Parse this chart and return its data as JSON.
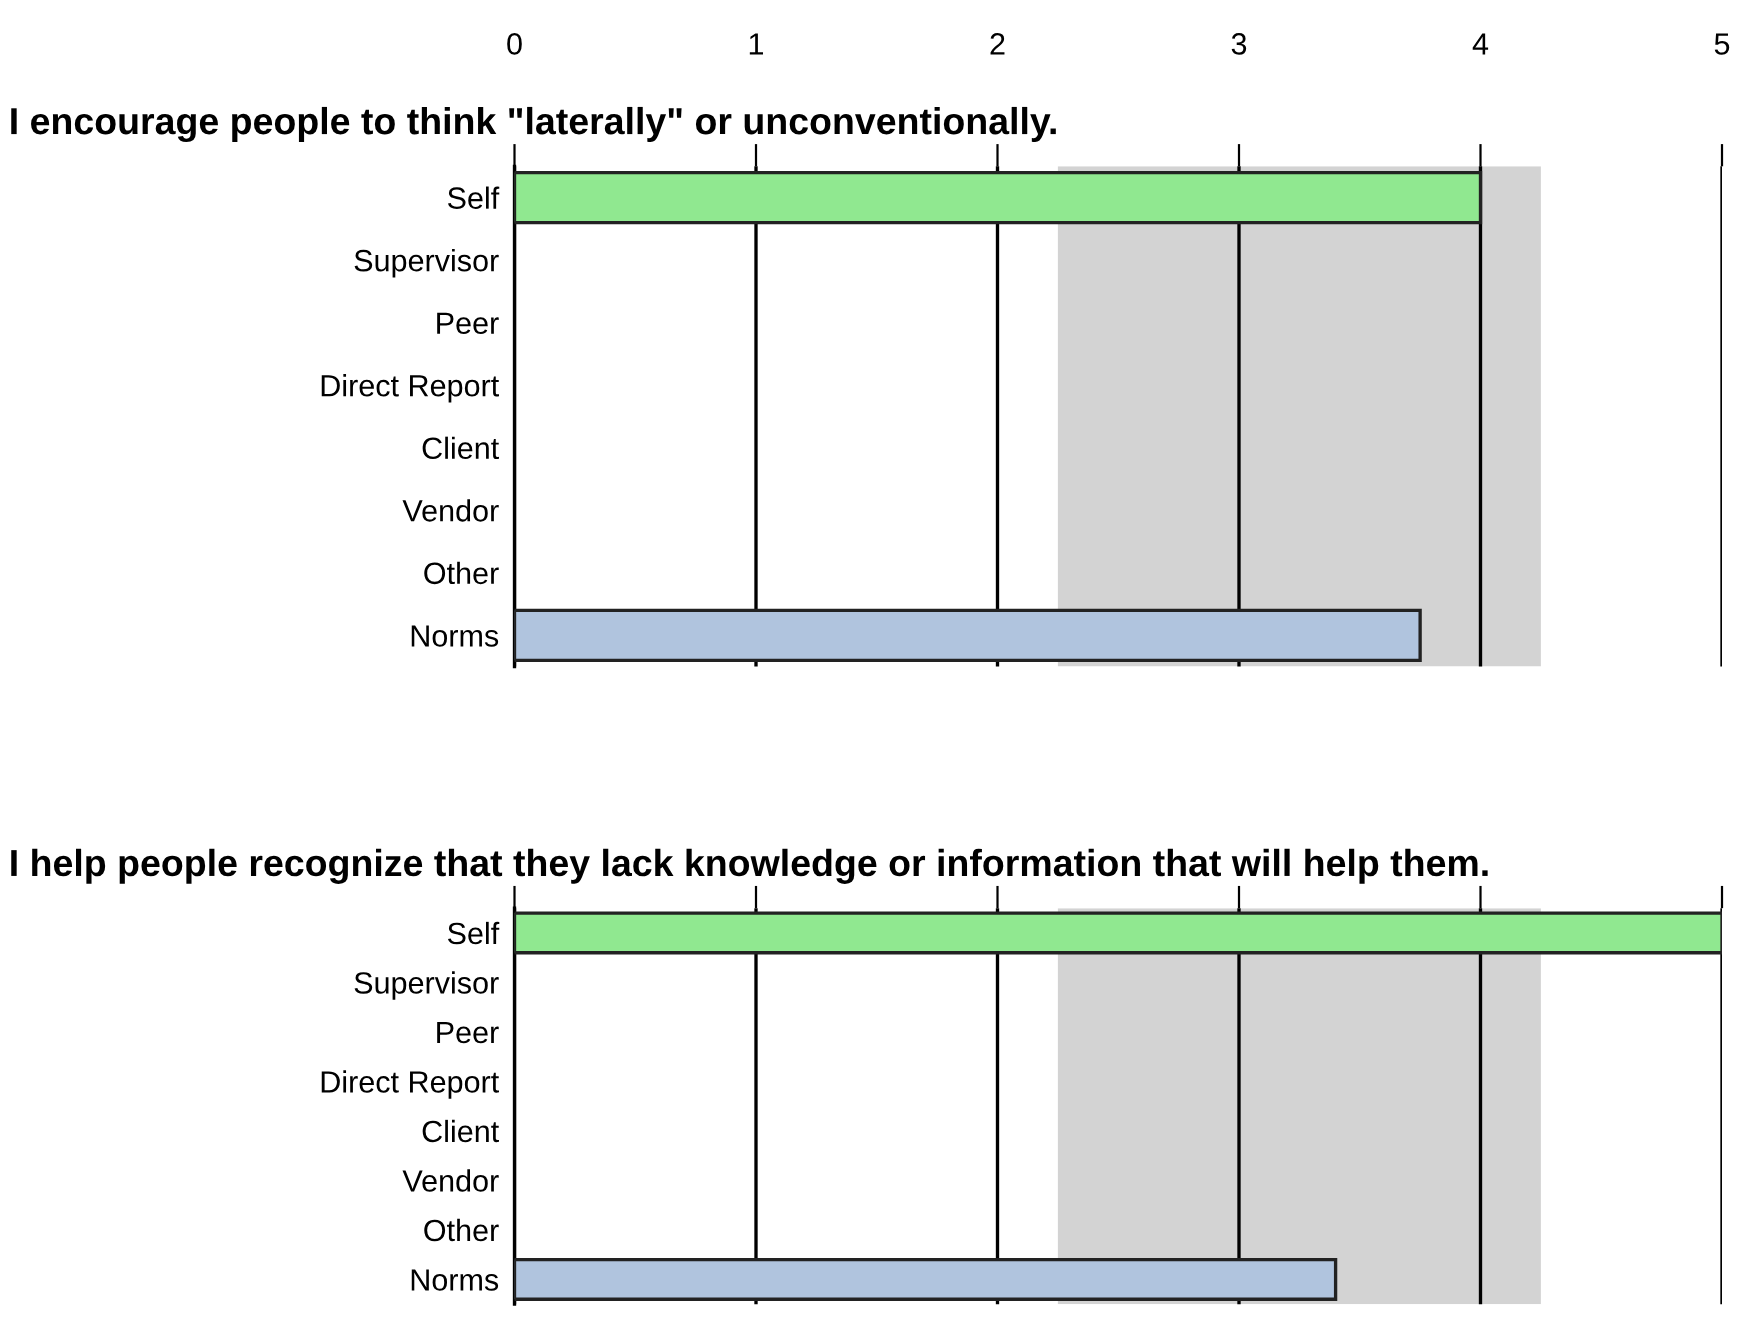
{
  "chart_data": [
    {
      "type": "bar",
      "orientation": "horizontal",
      "title": "I encourage people to think \"laterally\" or unconventionally.",
      "categories": [
        "Self",
        "Supervisor",
        "Peer",
        "Direct Report",
        "Client",
        "Vendor",
        "Other",
        "Norms"
      ],
      "values": [
        4,
        null,
        null,
        null,
        null,
        null,
        null,
        3.75
      ],
      "colors": [
        "#90e890",
        "#90e890",
        "#90e890",
        "#90e890",
        "#90e890",
        "#90e890",
        "#90e890",
        "#b0c4de"
      ],
      "xlim": [
        0,
        5
      ],
      "xticks": [
        0,
        1,
        2,
        3,
        4,
        5
      ],
      "grid": "x",
      "bands": [
        {
          "axis": "x",
          "from": 2.25,
          "to": 4.25,
          "color": "#d3d3d3"
        }
      ]
    },
    {
      "type": "bar",
      "orientation": "horizontal",
      "title": "I help people recognize that they lack knowledge or information that will help them.",
      "categories": [
        "Self",
        "Supervisor",
        "Peer",
        "Direct Report",
        "Client",
        "Vendor",
        "Other",
        "Norms"
      ],
      "values": [
        5,
        null,
        null,
        null,
        null,
        null,
        null,
        3.4
      ],
      "colors": [
        "#90e890",
        "#90e890",
        "#90e890",
        "#90e890",
        "#90e890",
        "#90e890",
        "#90e890",
        "#b0c4de"
      ],
      "xlim": [
        0,
        5
      ],
      "xticks": [
        0,
        1,
        2,
        3,
        4,
        5
      ],
      "grid": "x",
      "tick_labels": "y",
      "bands": [
        {
          "axis": "x",
          "from": 2.25,
          "to": 4.25,
          "color": "#d3d3d3"
        }
      ]
    }
  ]
}
